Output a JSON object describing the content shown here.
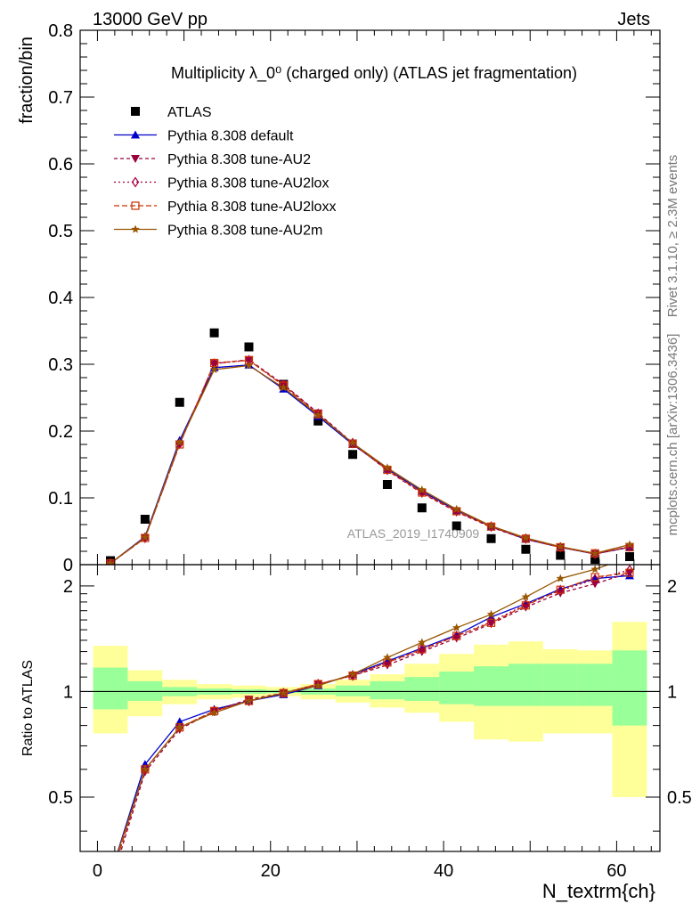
{
  "header": {
    "left": "13000 GeV pp",
    "right": "Jets",
    "title": "Multiplicity λ_0⁰ (charged only) (ATLAS jet fragmentation)",
    "side_top": "Rivet 3.1.10, ≥ 2.3M events",
    "side_bottom": "mcplots.cern.ch [arXiv:1306.3436]",
    "watermark": "ATLAS_2019_I1740909"
  },
  "chart_data": [
    {
      "type": "scatter",
      "ylabel": "fraction/bin",
      "xlim": [
        -2,
        65
      ],
      "ylim": [
        0,
        0.8
      ],
      "yticks": [
        "0",
        "0.1",
        "0.2",
        "0.3",
        "0.4",
        "0.5",
        "0.6",
        "0.7",
        "0.8"
      ],
      "legend_position": "top-left",
      "x": [
        1.5,
        5.5,
        9.5,
        13.5,
        17.5,
        21.5,
        25.5,
        29.5,
        33.5,
        37.5,
        41.5,
        45.5,
        49.5,
        53.5,
        57.5,
        61.5
      ],
      "series": [
        {
          "name": "ATLAS",
          "color": "#000000",
          "marker": "square",
          "values": [
            0.006,
            0.068,
            0.243,
            0.347,
            0.326,
            0.27,
            0.215,
            0.165,
            0.12,
            0.085,
            0.058,
            0.039,
            0.023,
            0.014,
            0.008,
            0.012
          ]
        },
        {
          "name": "Pythia 8.308 default",
          "color": "#0000cc",
          "marker": "triangle-up",
          "dash": "",
          "values": [
            0.002,
            0.042,
            0.186,
            0.295,
            0.299,
            0.263,
            0.222,
            0.18,
            0.143,
            0.11,
            0.081,
            0.057,
            0.038,
            0.026,
            0.016,
            0.026
          ]
        },
        {
          "name": "Pythia 8.308 tune-AU2",
          "color": "#99003d",
          "marker": "triangle-down",
          "dash": "4,3",
          "values": [
            0.002,
            0.04,
            0.18,
            0.301,
            0.307,
            0.27,
            0.227,
            0.182,
            0.141,
            0.107,
            0.079,
            0.056,
            0.038,
            0.026,
            0.016,
            0.027
          ]
        },
        {
          "name": "Pythia 8.308 tune-AU2lox",
          "color": "#a80044",
          "marker": "diamond-open",
          "dash": "2,3",
          "values": [
            0.002,
            0.04,
            0.181,
            0.301,
            0.306,
            0.269,
            0.226,
            0.182,
            0.142,
            0.108,
            0.08,
            0.057,
            0.039,
            0.026,
            0.016,
            0.027
          ]
        },
        {
          "name": "Pythia 8.308 tune-AU2loxx",
          "color": "#cc3300",
          "marker": "square-open",
          "dash": "6,3",
          "values": [
            0.002,
            0.04,
            0.18,
            0.302,
            0.306,
            0.268,
            0.225,
            0.181,
            0.142,
            0.108,
            0.08,
            0.057,
            0.039,
            0.026,
            0.017,
            0.026
          ]
        },
        {
          "name": "Pythia 8.308 tune-AU2m",
          "color": "#995500",
          "marker": "star",
          "dash": "",
          "values": [
            0.002,
            0.041,
            0.183,
            0.292,
            0.298,
            0.265,
            0.224,
            0.182,
            0.145,
            0.112,
            0.083,
            0.058,
            0.04,
            0.027,
            0.017,
            0.03
          ]
        }
      ]
    },
    {
      "type": "line",
      "ylabel": "Ratio to ATLAS",
      "xlabel": "N_textrm{ch}",
      "xlim": [
        -2,
        65
      ],
      "ylim": [
        0.35,
        2.3
      ],
      "yticks_left": [
        "0.5",
        "1",
        "2"
      ],
      "yticks_right": [
        "0.5",
        "1",
        "2"
      ],
      "xticks": [
        "0",
        "20",
        "40",
        "60"
      ],
      "bins": [
        [
          -0.5,
          3.5
        ],
        [
          3.5,
          7.5
        ],
        [
          7.5,
          11.5
        ],
        [
          11.5,
          15.5
        ],
        [
          15.5,
          19.5
        ],
        [
          19.5,
          23.5
        ],
        [
          23.5,
          27.5
        ],
        [
          27.5,
          31.5
        ],
        [
          31.5,
          35.5
        ],
        [
          35.5,
          39.5
        ],
        [
          39.5,
          43.5
        ],
        [
          43.5,
          47.5
        ],
        [
          47.5,
          51.5
        ],
        [
          51.5,
          55.5
        ],
        [
          55.5,
          59.5
        ],
        [
          59.5,
          63.5
        ]
      ],
      "band_yellow": [
        [
          0.76,
          1.35
        ],
        [
          0.85,
          1.15
        ],
        [
          0.92,
          1.08
        ],
        [
          0.95,
          1.05
        ],
        [
          0.96,
          1.04
        ],
        [
          0.97,
          1.03
        ],
        [
          0.95,
          1.05
        ],
        [
          0.93,
          1.08
        ],
        [
          0.9,
          1.12
        ],
        [
          0.87,
          1.2
        ],
        [
          0.82,
          1.28
        ],
        [
          0.73,
          1.36
        ],
        [
          0.72,
          1.39
        ],
        [
          0.76,
          1.32
        ],
        [
          0.76,
          1.31
        ],
        [
          0.5,
          1.58
        ]
      ],
      "band_green": [
        [
          0.89,
          1.17
        ],
        [
          0.94,
          1.07
        ],
        [
          0.97,
          1.03
        ],
        [
          0.98,
          1.02
        ],
        [
          0.985,
          1.015
        ],
        [
          0.99,
          1.01
        ],
        [
          0.98,
          1.02
        ],
        [
          0.97,
          1.04
        ],
        [
          0.95,
          1.07
        ],
        [
          0.94,
          1.1
        ],
        [
          0.92,
          1.14
        ],
        [
          0.91,
          1.18
        ],
        [
          0.91,
          1.2
        ],
        [
          0.91,
          1.2
        ],
        [
          0.91,
          1.2
        ],
        [
          0.8,
          1.31
        ]
      ],
      "series": [
        {
          "name": "Pythia 8.308 default",
          "color": "#0000cc",
          "dash": "",
          "values": [
            0.3,
            0.62,
            0.82,
            0.89,
            0.94,
            0.98,
            1.04,
            1.12,
            1.22,
            1.33,
            1.45,
            1.63,
            1.78,
            1.96,
            2.1,
            2.14
          ]
        },
        {
          "name": "Pythia 8.308 tune-AU2",
          "color": "#99003d",
          "dash": "4,3",
          "values": [
            0.28,
            0.59,
            0.78,
            0.88,
            0.95,
            0.99,
            1.05,
            1.11,
            1.19,
            1.3,
            1.42,
            1.56,
            1.74,
            1.91,
            2.03,
            2.18
          ]
        },
        {
          "name": "Pythia 8.308 tune-AU2lox",
          "color": "#a80044",
          "dash": "2,3",
          "values": [
            0.29,
            0.6,
            0.79,
            0.88,
            0.94,
            0.99,
            1.05,
            1.11,
            1.21,
            1.31,
            1.44,
            1.58,
            1.77,
            1.94,
            2.09,
            2.22
          ]
        },
        {
          "name": "Pythia 8.308 tune-AU2loxx",
          "color": "#cc3300",
          "dash": "6,3",
          "values": [
            0.29,
            0.6,
            0.79,
            0.88,
            0.94,
            0.99,
            1.05,
            1.11,
            1.21,
            1.32,
            1.44,
            1.57,
            1.76,
            1.95,
            2.12,
            2.18
          ]
        },
        {
          "name": "Pythia 8.308 tune-AU2m",
          "color": "#995500",
          "dash": "",
          "values": [
            0.3,
            0.6,
            0.79,
            0.87,
            0.94,
            0.99,
            1.04,
            1.12,
            1.25,
            1.38,
            1.52,
            1.66,
            1.86,
            2.1,
            2.23,
            2.42
          ]
        }
      ]
    }
  ]
}
